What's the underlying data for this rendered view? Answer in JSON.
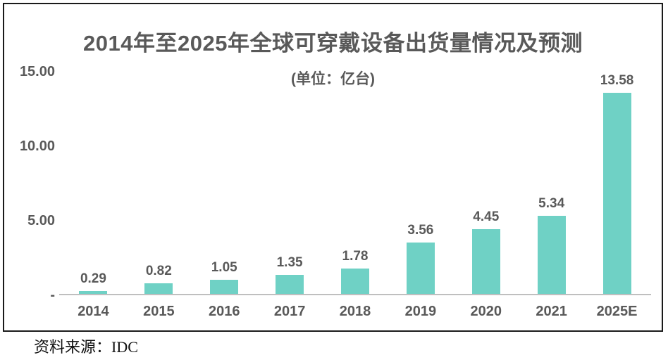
{
  "title": "2014年至2025年全球可穿戴设备出货量情况及预测",
  "subtitle": "(单位：亿台)",
  "source_note": "资料来源：IDC",
  "colors": {
    "bar": "#6FD1C5",
    "chart_text": "#595959",
    "axis_line": "#BFBFBF",
    "frame_border": "#1A1A1A",
    "source_text": "#111111"
  },
  "chart_data": {
    "type": "bar",
    "title": "2014年至2025年全球可穿戴设备出货量情况及预测",
    "subtitle": "(单位：亿台)",
    "categories": [
      "2014",
      "2015",
      "2016",
      "2017",
      "2018",
      "2019",
      "2020",
      "2021",
      "2025E"
    ],
    "values": [
      0.29,
      0.82,
      1.05,
      1.35,
      1.78,
      3.56,
      4.45,
      5.34,
      13.58
    ],
    "value_labels": [
      "0.29",
      "0.82",
      "1.05",
      "1.35",
      "1.78",
      "3.56",
      "4.45",
      "5.34",
      "13.58"
    ],
    "xlabel": "",
    "ylabel": "",
    "ylim": [
      0,
      15
    ],
    "y_ticks": [
      {
        "value": 0,
        "label": "-"
      },
      {
        "value": 5,
        "label": "5.00"
      },
      {
        "value": 10,
        "label": "10.00"
      },
      {
        "value": 15,
        "label": "15.00"
      }
    ],
    "grid": false,
    "legend": false,
    "bar_color": "#6FD1C5"
  }
}
